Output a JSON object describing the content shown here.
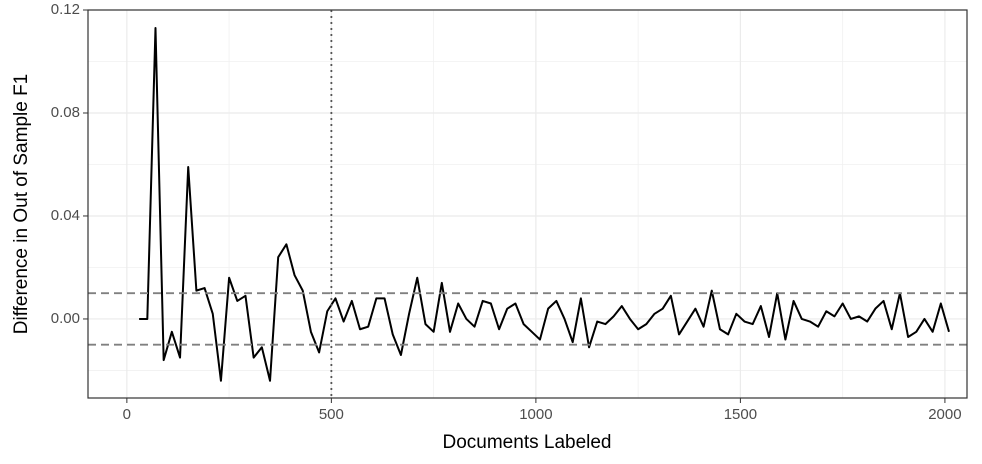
{
  "chart_data": {
    "type": "line",
    "x_label": "Documents Labeled",
    "y_label": "Difference in Out of Sample F1",
    "x": [
      30,
      50,
      70,
      90,
      110,
      130,
      150,
      170,
      190,
      210,
      230,
      250,
      270,
      290,
      310,
      330,
      350,
      370,
      390,
      410,
      430,
      450,
      470,
      490,
      510,
      530,
      550,
      570,
      590,
      610,
      630,
      650,
      670,
      690,
      710,
      730,
      750,
      770,
      790,
      810,
      830,
      850,
      870,
      890,
      910,
      930,
      950,
      970,
      990,
      1010,
      1030,
      1050,
      1070,
      1090,
      1110,
      1130,
      1150,
      1170,
      1190,
      1210,
      1230,
      1250,
      1270,
      1290,
      1310,
      1330,
      1350,
      1370,
      1390,
      1410,
      1430,
      1450,
      1470,
      1490,
      1510,
      1530,
      1550,
      1570,
      1590,
      1610,
      1630,
      1650,
      1670,
      1690,
      1710,
      1730,
      1750,
      1770,
      1790,
      1810,
      1830,
      1850,
      1870,
      1890,
      1910,
      1930,
      1950,
      1970,
      1990,
      2010
    ],
    "series": [
      {
        "color": "#000000",
        "values": [
          0.0,
          0.0,
          0.113,
          -0.016,
          -0.005,
          -0.015,
          0.059,
          0.011,
          0.012,
          0.002,
          -0.024,
          0.016,
          0.007,
          0.009,
          -0.015,
          -0.011,
          -0.024,
          0.024,
          0.029,
          0.017,
          0.011,
          -0.005,
          -0.013,
          0.003,
          0.008,
          -0.001,
          0.007,
          -0.004,
          -0.003,
          0.008,
          0.008,
          -0.006,
          -0.014,
          0.002,
          0.016,
          -0.002,
          -0.005,
          0.014,
          -0.005,
          0.006,
          0.0,
          -0.003,
          0.007,
          0.006,
          -0.004,
          0.004,
          0.006,
          -0.002,
          -0.005,
          -0.008,
          0.004,
          0.007,
          0.0,
          -0.009,
          0.008,
          -0.011,
          -0.001,
          -0.002,
          0.001,
          0.005,
          0.0,
          -0.004,
          -0.002,
          0.002,
          0.004,
          0.009,
          -0.006,
          -0.001,
          0.004,
          -0.003,
          0.011,
          -0.004,
          -0.006,
          0.002,
          -0.001,
          -0.002,
          0.005,
          -0.007,
          0.01,
          -0.008,
          0.007,
          0.0,
          -0.001,
          -0.003,
          0.003,
          0.001,
          0.006,
          0.0,
          0.001,
          -0.001,
          0.004,
          0.007,
          -0.004,
          0.01,
          -0.007,
          -0.005,
          0.0,
          -0.005,
          0.006,
          -0.005
        ]
      }
    ],
    "xlim": [
      -95,
      2054
    ],
    "ylim": [
      -0.0307,
      0.12
    ],
    "xticks": [
      0,
      500,
      1000,
      1500,
      2000
    ],
    "yticks": [
      {
        "value": 0,
        "label": "0.00"
      },
      0.04,
      0.08,
      0.12
    ],
    "minor_xticks": [
      250,
      750,
      1250,
      1750
    ],
    "minor_yticks": [
      -0.02,
      0.02,
      0.06,
      0.1
    ],
    "hlines": [
      -0.01,
      0.01
    ],
    "vlines": [
      500
    ],
    "grid": true
  }
}
